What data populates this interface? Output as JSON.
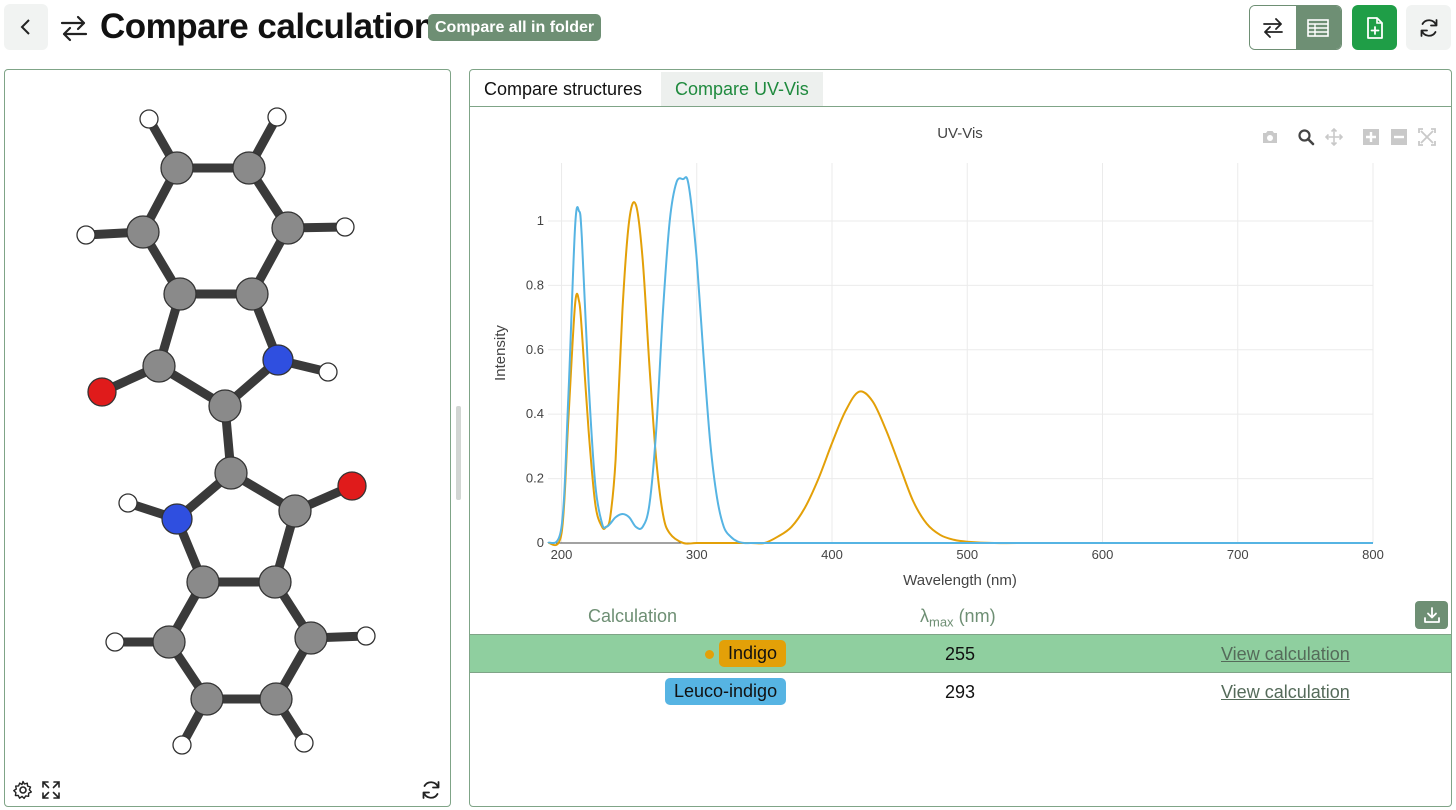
{
  "header": {
    "title": "Compare calculations",
    "compare_folder_label": "Compare all in folder"
  },
  "tabs": [
    {
      "label": "Compare structures",
      "active": false
    },
    {
      "label": "Compare UV-Vis",
      "active": true
    }
  ],
  "chart_data": {
    "type": "line",
    "title": "UV-Vis",
    "xlabel": "Wavelength (nm)",
    "ylabel": "Intensity",
    "xlim": [
      190,
      800
    ],
    "ylim": [
      0,
      1.18
    ],
    "x_ticks": [
      "200",
      "300",
      "400",
      "500",
      "600",
      "700",
      "800"
    ],
    "y_ticks": [
      "0",
      "0.2",
      "0.4",
      "0.6",
      "0.8",
      "1"
    ],
    "grid": true,
    "series": [
      {
        "name": "Indigo",
        "color": "#e3a008",
        "x": [
          190,
          200,
          205,
          210,
          213,
          215,
          220,
          225,
          230,
          233,
          236,
          240,
          245,
          250,
          255,
          260,
          265,
          270,
          275,
          280,
          290,
          300,
          320,
          340,
          350,
          360,
          370,
          380,
          390,
          400,
          410,
          420,
          430,
          440,
          450,
          460,
          470,
          480,
          490,
          500,
          520,
          550,
          600,
          700,
          800
        ],
        "y": [
          0,
          0.03,
          0.38,
          0.74,
          0.75,
          0.66,
          0.35,
          0.12,
          0.05,
          0.05,
          0.08,
          0.26,
          0.72,
          1.0,
          1.05,
          0.88,
          0.55,
          0.26,
          0.09,
          0.03,
          0.0,
          0.0,
          0.0,
          0.0,
          0.0,
          0.02,
          0.05,
          0.11,
          0.2,
          0.31,
          0.41,
          0.47,
          0.44,
          0.35,
          0.24,
          0.13,
          0.06,
          0.025,
          0.01,
          0.004,
          0.0,
          0.0,
          0.0,
          0.0,
          0.0
        ]
      },
      {
        "name": "Leuco-indigo",
        "color": "#56b4e3",
        "x": [
          190,
          200,
          205,
          210,
          213,
          215,
          220,
          225,
          230,
          233,
          236,
          240,
          245,
          250,
          255,
          260,
          265,
          270,
          275,
          280,
          285,
          290,
          293,
          296,
          300,
          305,
          310,
          315,
          320,
          325,
          330,
          335,
          340,
          350,
          400,
          500,
          600,
          700,
          800
        ],
        "y": [
          0,
          0.05,
          0.45,
          0.98,
          1.03,
          0.95,
          0.5,
          0.18,
          0.06,
          0.05,
          0.06,
          0.08,
          0.09,
          0.08,
          0.05,
          0.05,
          0.12,
          0.35,
          0.72,
          1.0,
          1.12,
          1.13,
          1.13,
          1.05,
          0.88,
          0.58,
          0.31,
          0.14,
          0.05,
          0.02,
          0.005,
          0.0,
          0.0,
          0.0,
          0.0,
          0.0,
          0.0,
          0.0,
          0.0
        ]
      }
    ]
  },
  "table": {
    "col_calculation": "Calculation",
    "col_lambda_main": "λ",
    "col_lambda_sub": "max",
    "col_lambda_unit": " (nm)",
    "rows": [
      {
        "name": "Indigo",
        "lambda": "255",
        "link": "View calculation",
        "color": "#e3a008"
      },
      {
        "name": "Leuco-indigo",
        "lambda": "293",
        "link": "View calculation",
        "color": "#56b4e3"
      }
    ]
  },
  "colors": {
    "accent": "#1f9e47",
    "muted_green": "#6e8f74",
    "selected_row": "#8fcf9f"
  }
}
